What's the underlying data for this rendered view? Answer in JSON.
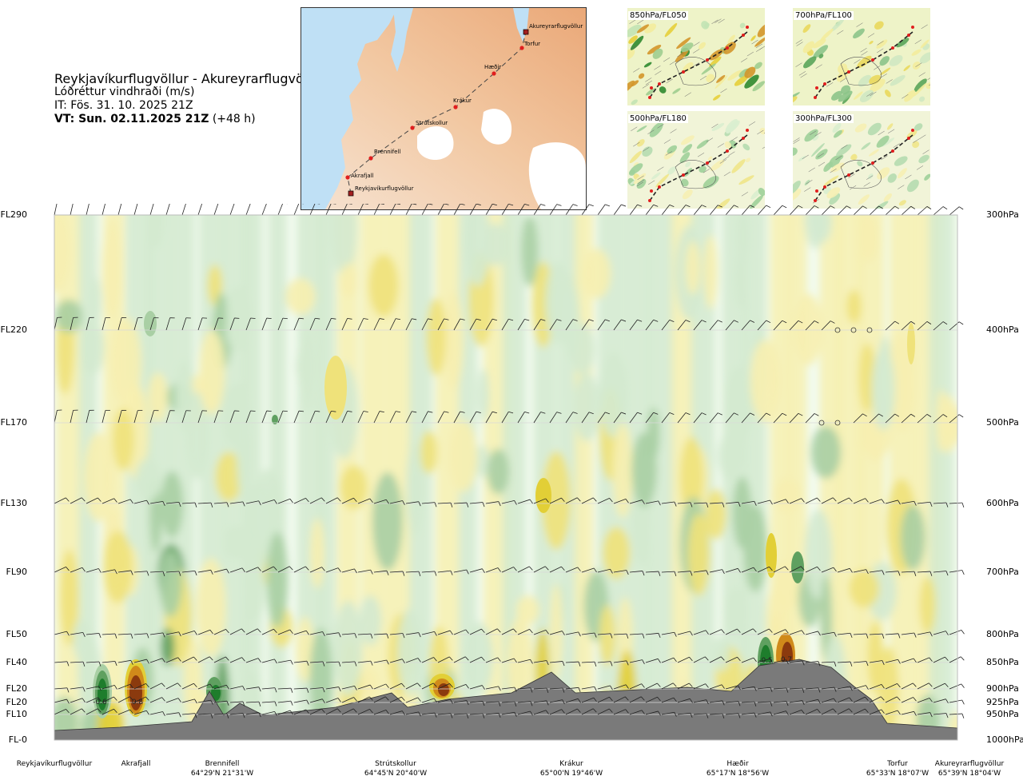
{
  "title": {
    "route": "Reykjavíkurflugvöllur - Akureyrarflugvöllur",
    "parameter": "Lóðréttur vindhraði (m/s)",
    "issue_time": "IT: Fös. 31. 10. 2025 21Z",
    "valid_time_bold": "VT: Sun. 02.11.2025 21Z",
    "valid_time_offset": "(+48 h)"
  },
  "map": {
    "waypoints": [
      {
        "name": "Reykjavíkurflugvöllur",
        "symbol": "square"
      },
      {
        "name": "Akrafjall",
        "symbol": "dot"
      },
      {
        "name": "Brennifell",
        "symbol": "dot"
      },
      {
        "name": "Strútskollur",
        "symbol": "dot"
      },
      {
        "name": "Krákur",
        "symbol": "dot"
      },
      {
        "name": "Hæðir",
        "symbol": "dot"
      },
      {
        "name": "Torfur",
        "symbol": "dot"
      },
      {
        "name": "Akureyrarflugvöllur",
        "symbol": "square"
      }
    ]
  },
  "mini_maps": [
    {
      "label": "850hPa/FL050"
    },
    {
      "label": "700hPa/FL100"
    },
    {
      "label": "500hPa/FL180"
    },
    {
      "label": "300hPa/FL300"
    }
  ],
  "chart_data": {
    "type": "heatmap",
    "title": "Lóðréttur vindhraði (m/s)",
    "y_left_labels": [
      "FL290",
      "FL220",
      "FL170",
      "FL130",
      "FL90",
      "FL50",
      "FL40",
      "FL20",
      "FL20",
      "FL10",
      "FL-0"
    ],
    "y_right_labels": [
      "300hPa",
      "400hPa",
      "500hPa",
      "600hPa",
      "700hPa",
      "800hPa",
      "850hPa",
      "900hPa",
      "925hPa",
      "950hPa",
      "1000hPa"
    ],
    "pressure_levels_hpa": [
      300,
      400,
      500,
      600,
      700,
      800,
      850,
      900,
      925,
      950,
      1000
    ],
    "x_locations": [
      {
        "name": "Reykjavíkurflugvöllur",
        "coord": ""
      },
      {
        "name": "Akrafjall",
        "coord": ""
      },
      {
        "name": "Brennifell",
        "coord": "64°29'N 21°31'W"
      },
      {
        "name": "Strútskollur",
        "coord": "64°45'N 20°40'W"
      },
      {
        "name": "Krákur",
        "coord": "65°00'N 19°46'W"
      },
      {
        "name": "Hæðir",
        "coord": "65°17'N 18°56'W"
      },
      {
        "name": "Torfur",
        "coord": "65°33'N 18°07'W"
      },
      {
        "name": "Akureyrarflugvöllur",
        "coord": "65°39'N 18°04'W"
      }
    ],
    "extrema_labels": [
      {
        "text": "-0.6",
        "sign": "down"
      },
      {
        "text": "0.8",
        "sign": "up"
      },
      {
        "text": "-0.5",
        "sign": "down"
      },
      {
        "text": "0.7",
        "sign": "up"
      }
    ],
    "colors": {
      "down_strong": "#1e7d2c",
      "down_medium": "#5fa060",
      "down_light": "#a9cfa4",
      "down_weak": "#d4ead0",
      "neutral": "#f2fbef",
      "up_weak": "#f7f0b0",
      "up_light": "#efe27a",
      "up_medium": "#e2cf36",
      "up_strong": "#d08a1a",
      "up_max": "#8b3a0e",
      "terrain": "#7a7a7a"
    },
    "grid": true,
    "legend": "none"
  }
}
